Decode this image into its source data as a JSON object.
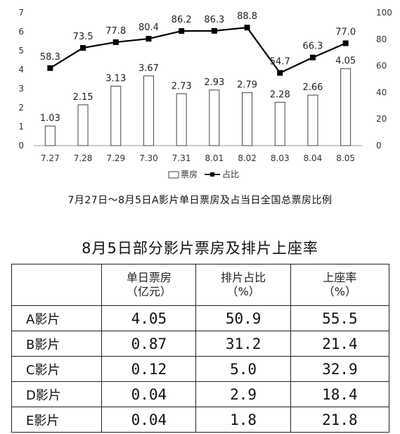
{
  "chart_data": {
    "type": "bar+line",
    "categories": [
      "7.27",
      "7.28",
      "7.29",
      "7.30",
      "7.31",
      "8.01",
      "8.02",
      "8.03",
      "8.04",
      "8.05"
    ],
    "series": [
      {
        "name": "票房",
        "type": "bar",
        "axis": "left",
        "values": [
          1.03,
          2.15,
          3.13,
          3.67,
          2.73,
          2.93,
          2.79,
          2.28,
          2.66,
          4.05
        ],
        "labels": [
          "1.03",
          "2.15",
          "3.13",
          "3.67",
          "2.73",
          "2.93",
          "2.79",
          "2.28",
          "2.66",
          "4.05"
        ]
      },
      {
        "name": "占比",
        "type": "line",
        "axis": "right",
        "values": [
          58.3,
          73.5,
          77.8,
          80.4,
          86.2,
          86.3,
          88.8,
          54.7,
          66.3,
          77.0
        ],
        "labels": [
          "58.3",
          "73.5",
          "77.8",
          "80.4",
          "86.2",
          "86.3",
          "88.8",
          "54.7",
          "66.3",
          "77.0"
        ]
      }
    ],
    "ylim_left": [
      0,
      7
    ],
    "yticks_left": [
      "0",
      "1",
      "2",
      "3",
      "4",
      "5",
      "6",
      "7"
    ],
    "ylim_right": [
      0,
      100
    ],
    "yticks_right": [
      "0",
      "20",
      "40",
      "60",
      "80",
      "100"
    ],
    "legend": {
      "position": "bottom-center"
    },
    "grid": false
  },
  "caption": "7月27日～8月5日A影片单日票房及占当日全国总票房比例",
  "table": {
    "title": "8月5日部分影片票房及排片上座率",
    "headers": [
      "",
      "单日票房\n（亿元）",
      "排片占比\n（%）",
      "上座率\n（%）"
    ],
    "rows": [
      [
        "A影片",
        "4.05",
        "50.9",
        "55.5"
      ],
      [
        "B影片",
        "0.87",
        "31.2",
        "21.4"
      ],
      [
        "C影片",
        "0.12",
        "5.0",
        "32.9"
      ],
      [
        "D影片",
        "0.04",
        "2.9",
        "18.4"
      ],
      [
        "E影片",
        "0.04",
        "1.8",
        "21.8"
      ]
    ]
  },
  "colors": {
    "bar_fill": "#ffffff",
    "bar_stroke": "#444444",
    "line": "#000000",
    "text": "#222222"
  }
}
